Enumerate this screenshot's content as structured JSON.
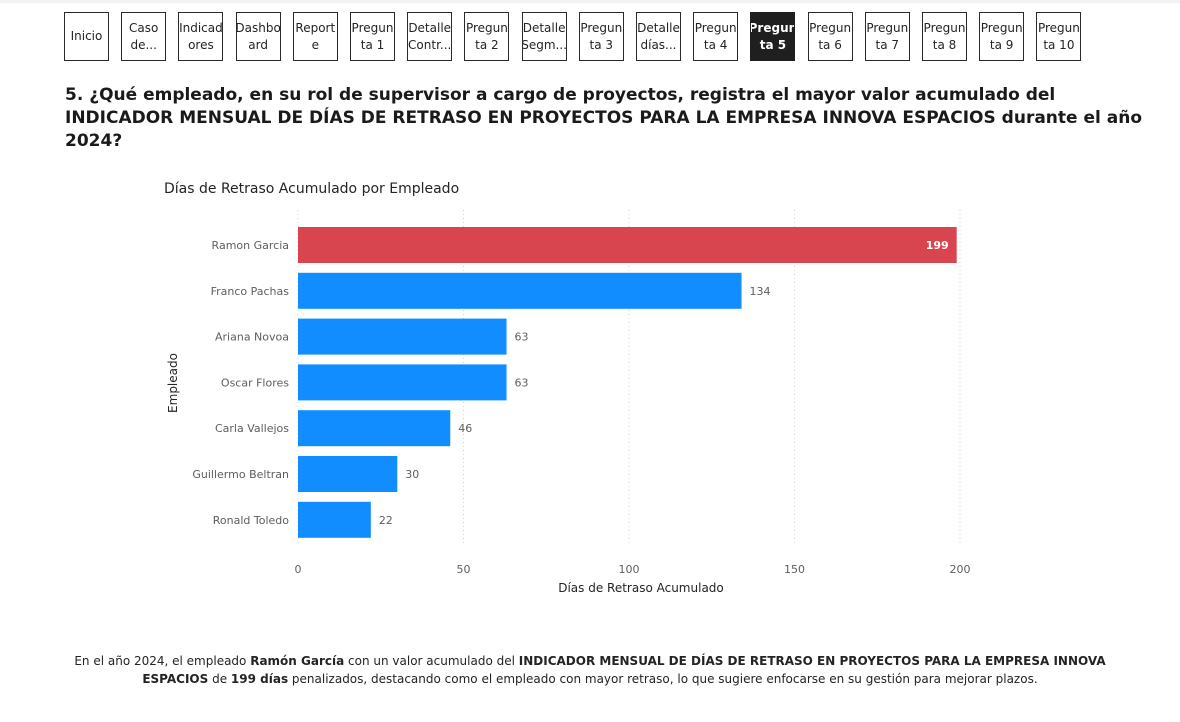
{
  "nav": {
    "buttons": [
      {
        "label": "Inicio",
        "active": false
      },
      {
        "label": "Caso\nde...",
        "active": false
      },
      {
        "label": "Indicad\nores",
        "active": false
      },
      {
        "label": "Dashbo\nard",
        "active": false
      },
      {
        "label": "Report\ne",
        "active": false
      },
      {
        "label": "Pregun\nta 1",
        "active": false
      },
      {
        "label": "Detalle\nContr...",
        "active": false
      },
      {
        "label": "Pregun\nta 2",
        "active": false
      },
      {
        "label": "Detalle\nSegm...",
        "active": false
      },
      {
        "label": "Pregun\nta 3",
        "active": false
      },
      {
        "label": "Detalle\ndías...",
        "active": false
      },
      {
        "label": "Pregun\nta 4",
        "active": false
      },
      {
        "label": "Pregun\nta 5",
        "active": true
      },
      {
        "label": "Pregun\nta 6",
        "active": false
      },
      {
        "label": "Pregun\nta 7",
        "active": false
      },
      {
        "label": "Pregun\nta 8",
        "active": false
      },
      {
        "label": "Pregun\nta 9",
        "active": false
      },
      {
        "label": "Pregun\nta 10",
        "active": false
      }
    ]
  },
  "question": "5. ¿Qué empleado, en su rol de supervisor a cargo de proyectos, registra el mayor valor acumulado del INDICADOR MENSUAL DE DÍAS DE RETRASO EN PROYECTOS PARA LA EMPRESA INNOVA ESPACIOS durante el año 2024?",
  "chart_data": {
    "type": "bar",
    "orientation": "horizontal",
    "title": "Días de Retraso Acumulado por Empleado",
    "xlabel": "Días de Retraso Acumulado",
    "ylabel": "Empleado",
    "categories": [
      "Ramon Garcia",
      "Franco Pachas",
      "Ariana Novoa",
      "Oscar Flores",
      "Carla Vallejos",
      "Guillermo Beltran",
      "Ronald Toledo"
    ],
    "values": [
      199,
      134,
      63,
      63,
      46,
      30,
      22
    ],
    "highlight_index": 0,
    "xlim": [
      0,
      200
    ],
    "xticks": [
      0,
      50,
      100,
      150,
      200
    ],
    "grid": "vertical dotted",
    "colors": {
      "bar": "#118DFF",
      "highlight": "#D9454F",
      "label": "#605E5C",
      "highlight_label": "#FFFFFF"
    }
  },
  "summary": {
    "p1": "En el año 2024, el empleado ",
    "b1": "Ramón García",
    "p2": " con un valor acumulado del ",
    "b2": "INDICADOR MENSUAL DE DÍAS DE RETRASO EN PROYECTOS PARA LA EMPRESA INNOVA ESPACIOS",
    "p3": " de ",
    "b3": "199 días",
    "p4": " penalizados, destacando como el empleado con mayor retraso, lo que sugiere enfocarse en su gestión para mejorar plazos."
  }
}
